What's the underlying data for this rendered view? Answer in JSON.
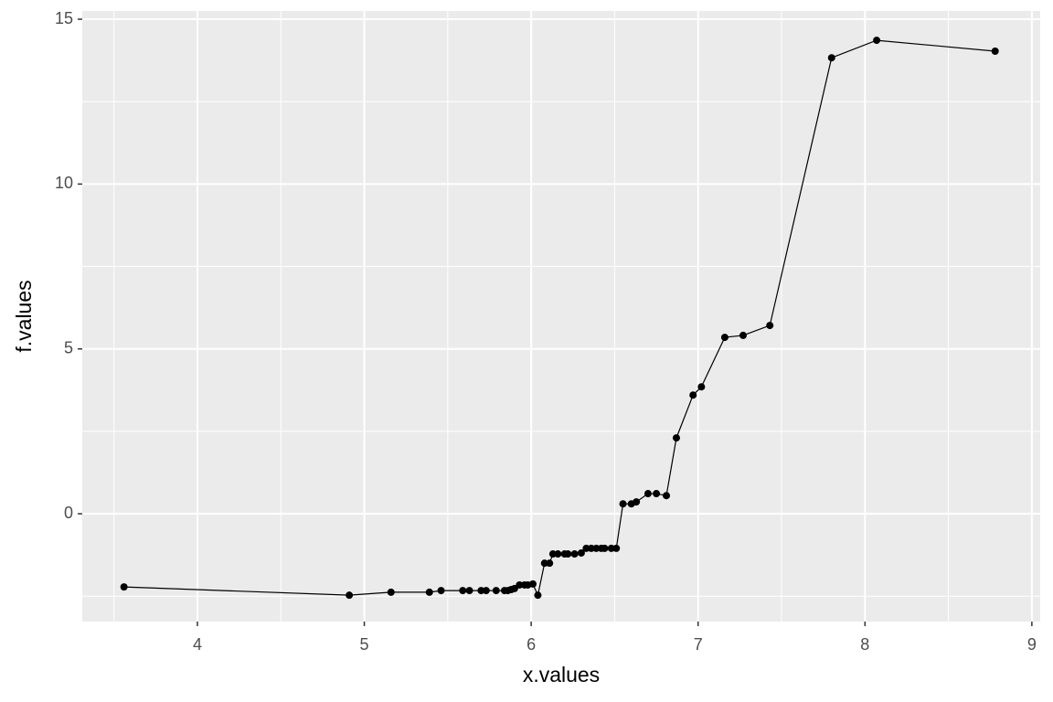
{
  "chart_data": {
    "type": "line",
    "x_label": "x.values",
    "y_label": "f.values",
    "x": [
      3.56,
      4.91,
      5.16,
      5.39,
      5.46,
      5.59,
      5.63,
      5.7,
      5.73,
      5.79,
      5.84,
      5.86,
      5.88,
      5.9,
      5.93,
      5.96,
      5.98,
      6.01,
      6.04,
      6.08,
      6.11,
      6.13,
      6.16,
      6.2,
      6.22,
      6.26,
      6.3,
      6.33,
      6.36,
      6.39,
      6.42,
      6.44,
      6.48,
      6.51,
      6.55,
      6.6,
      6.63,
      6.7,
      6.75,
      6.81,
      6.87,
      6.97,
      7.02,
      7.16,
      7.27,
      7.43,
      7.8,
      8.07,
      8.78
    ],
    "series": [
      {
        "color": "#000000",
        "values": [
          -2.22,
          -2.47,
          -2.38,
          -2.38,
          -2.33,
          -2.33,
          -2.33,
          -2.33,
          -2.33,
          -2.33,
          -2.33,
          -2.33,
          -2.3,
          -2.27,
          -2.16,
          -2.16,
          -2.16,
          -2.13,
          -2.47,
          -1.5,
          -1.5,
          -1.22,
          -1.22,
          -1.22,
          -1.22,
          -1.22,
          -1.19,
          -1.05,
          -1.05,
          -1.05,
          -1.05,
          -1.05,
          -1.05,
          -1.05,
          0.3,
          0.3,
          0.36,
          0.61,
          0.61,
          0.55,
          2.3,
          3.6,
          3.85,
          5.35,
          5.41,
          5.71,
          13.83,
          14.36,
          14.03
        ]
      }
    ],
    "xlim": [
      3.31,
      9.05
    ],
    "ylim": [
      -3.27,
      15.25
    ],
    "xticks": [
      4,
      5,
      6,
      7,
      8,
      9
    ],
    "yticks": [
      0,
      5,
      10,
      15
    ],
    "grid": true,
    "markers": true
  }
}
